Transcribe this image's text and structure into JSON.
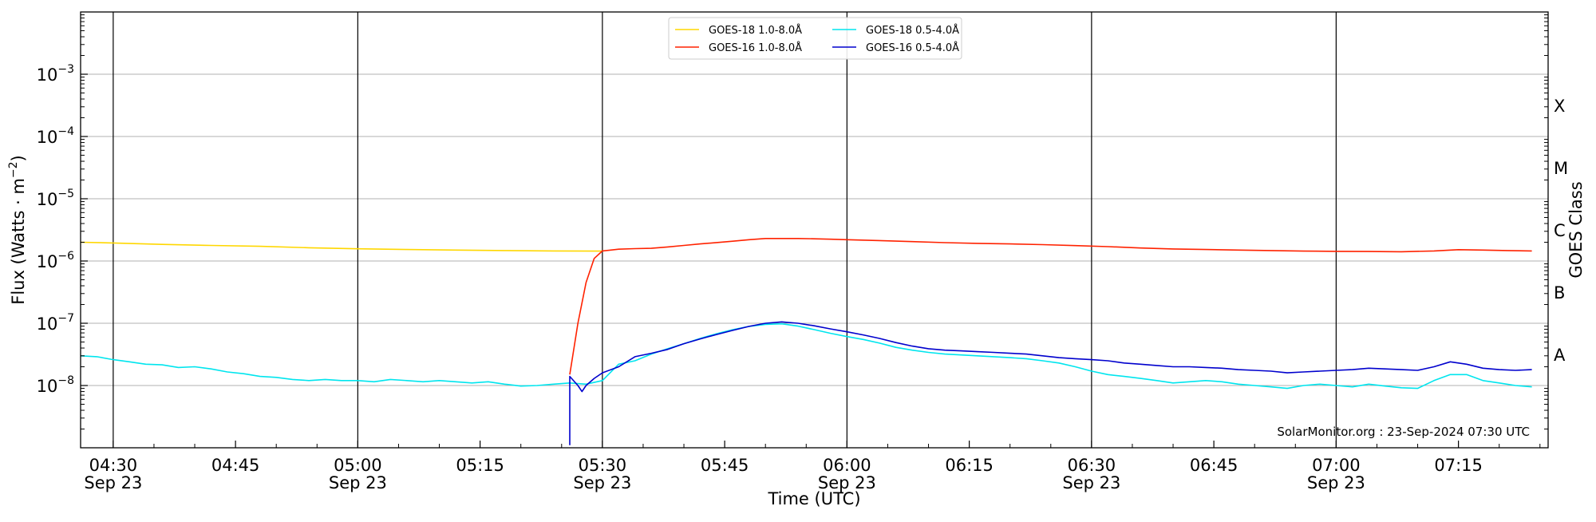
{
  "chart_data": {
    "type": "line",
    "xlabel": "Time (UTC)",
    "ylabel_main": "Flux (Watts · m",
    "ylabel_sup": "−2",
    "ylabel_close": ")",
    "y2label": "GOES Class",
    "y_scale": "log",
    "ylim": [
      1e-09,
      0.01
    ],
    "xlim_minutes": [
      266,
      446
    ],
    "grid": "horizontal at each decade; vertical lines at 30-minute marks",
    "legend_position": "top-center",
    "annotation": "SolarMonitor.org : 23-Sep-2024 07:30 UTC",
    "x_ticks": [
      {
        "m": 270,
        "time": "04:30",
        "date": "Sep 23"
      },
      {
        "m": 285,
        "time": "04:45",
        "date": ""
      },
      {
        "m": 300,
        "time": "05:00",
        "date": "Sep 23"
      },
      {
        "m": 315,
        "time": "05:15",
        "date": ""
      },
      {
        "m": 330,
        "time": "05:30",
        "date": "Sep 23"
      },
      {
        "m": 345,
        "time": "05:45",
        "date": ""
      },
      {
        "m": 360,
        "time": "06:00",
        "date": "Sep 23"
      },
      {
        "m": 375,
        "time": "06:15",
        "date": ""
      },
      {
        "m": 390,
        "time": "06:30",
        "date": "Sep 23"
      },
      {
        "m": 405,
        "time": "06:45",
        "date": ""
      },
      {
        "m": 420,
        "time": "07:00",
        "date": "Sep 23"
      },
      {
        "m": 435,
        "time": "07:15",
        "date": ""
      }
    ],
    "y_ticks": [
      {
        "exp": -8,
        "base": "10",
        "sup": "−8"
      },
      {
        "exp": -7,
        "base": "10",
        "sup": "−7"
      },
      {
        "exp": -6,
        "base": "10",
        "sup": "−6"
      },
      {
        "exp": -5,
        "base": "10",
        "sup": "−5"
      },
      {
        "exp": -4,
        "base": "10",
        "sup": "−4"
      },
      {
        "exp": -3,
        "base": "10",
        "sup": "−3"
      }
    ],
    "goes_classes": [
      {
        "label": "A",
        "exp": -7.5
      },
      {
        "label": "B",
        "exp": -6.5
      },
      {
        "label": "C",
        "exp": -5.5
      },
      {
        "label": "M",
        "exp": -4.5
      },
      {
        "label": "X",
        "exp": -3.5
      }
    ],
    "series": [
      {
        "name": "GOES-18 1.0-8.0Å",
        "color": "#ffd700",
        "points": [
          [
            266,
            2e-06
          ],
          [
            270,
            1.95e-06
          ],
          [
            276,
            1.85e-06
          ],
          [
            282,
            1.78e-06
          ],
          [
            288,
            1.72e-06
          ],
          [
            294,
            1.63e-06
          ],
          [
            300,
            1.57e-06
          ],
          [
            306,
            1.53e-06
          ],
          [
            312,
            1.5e-06
          ],
          [
            318,
            1.47e-06
          ],
          [
            324,
            1.45e-06
          ],
          [
            329,
            1.44e-06
          ],
          [
            330,
            1.44e-06
          ]
        ]
      },
      {
        "name": "GOES-16 1.0-8.0Å",
        "color": "#ff2200",
        "points": [
          [
            326,
            1.5e-08
          ],
          [
            327,
            1e-07
          ],
          [
            328,
            4.5e-07
          ],
          [
            329,
            1.1e-06
          ],
          [
            330,
            1.45e-06
          ],
          [
            332,
            1.55e-06
          ],
          [
            334,
            1.58e-06
          ],
          [
            336,
            1.6e-06
          ],
          [
            338,
            1.68e-06
          ],
          [
            340,
            1.78e-06
          ],
          [
            342,
            1.88e-06
          ],
          [
            344,
            1.98e-06
          ],
          [
            346,
            2.08e-06
          ],
          [
            348,
            2.2e-06
          ],
          [
            350,
            2.3e-06
          ],
          [
            352,
            2.3e-06
          ],
          [
            354,
            2.3e-06
          ],
          [
            356,
            2.27e-06
          ],
          [
            358,
            2.24e-06
          ],
          [
            360,
            2.2e-06
          ],
          [
            364,
            2.13e-06
          ],
          [
            368,
            2.05e-06
          ],
          [
            372,
            1.97e-06
          ],
          [
            376,
            1.92e-06
          ],
          [
            380,
            1.88e-06
          ],
          [
            384,
            1.83e-06
          ],
          [
            388,
            1.77e-06
          ],
          [
            392,
            1.7e-06
          ],
          [
            396,
            1.62e-06
          ],
          [
            400,
            1.56e-06
          ],
          [
            404,
            1.53e-06
          ],
          [
            408,
            1.5e-06
          ],
          [
            412,
            1.47e-06
          ],
          [
            416,
            1.44e-06
          ],
          [
            420,
            1.43e-06
          ],
          [
            424,
            1.42e-06
          ],
          [
            428,
            1.41e-06
          ],
          [
            432,
            1.45e-06
          ],
          [
            435,
            1.52e-06
          ],
          [
            438,
            1.5e-06
          ],
          [
            441,
            1.47e-06
          ],
          [
            444,
            1.45e-06
          ]
        ]
      },
      {
        "name": "GOES-18 0.5-4.0Å",
        "color": "#00e5ee",
        "points": [
          [
            266,
            3e-08
          ],
          [
            268,
            2.9e-08
          ],
          [
            270,
            2.6e-08
          ],
          [
            272,
            2.4e-08
          ],
          [
            274,
            2.2e-08
          ],
          [
            276,
            2.15e-08
          ],
          [
            278,
            1.95e-08
          ],
          [
            280,
            2e-08
          ],
          [
            282,
            1.85e-08
          ],
          [
            284,
            1.65e-08
          ],
          [
            286,
            1.55e-08
          ],
          [
            288,
            1.4e-08
          ],
          [
            290,
            1.35e-08
          ],
          [
            292,
            1.25e-08
          ],
          [
            294,
            1.2e-08
          ],
          [
            296,
            1.25e-08
          ],
          [
            298,
            1.2e-08
          ],
          [
            300,
            1.2e-08
          ],
          [
            302,
            1.15e-08
          ],
          [
            304,
            1.25e-08
          ],
          [
            306,
            1.2e-08
          ],
          [
            308,
            1.15e-08
          ],
          [
            310,
            1.2e-08
          ],
          [
            312,
            1.15e-08
          ],
          [
            314,
            1.1e-08
          ],
          [
            316,
            1.15e-08
          ],
          [
            318,
            1.05e-08
          ],
          [
            320,
            9.8e-09
          ],
          [
            322,
            1e-08
          ],
          [
            324,
            1.05e-08
          ],
          [
            326,
            1.1e-08
          ],
          [
            328,
            1.05e-08
          ],
          [
            330,
            1.2e-08
          ],
          [
            332,
            2.2e-08
          ],
          [
            334,
            2.5e-08
          ],
          [
            336,
            3.2e-08
          ],
          [
            338,
            3.9e-08
          ],
          [
            340,
            4.7e-08
          ],
          [
            342,
            5.7e-08
          ],
          [
            344,
            6.8e-08
          ],
          [
            346,
            7.9e-08
          ],
          [
            348,
            8.9e-08
          ],
          [
            350,
            9.6e-08
          ],
          [
            352,
            9.8e-08
          ],
          [
            354,
            9e-08
          ],
          [
            356,
            7.9e-08
          ],
          [
            358,
            6.9e-08
          ],
          [
            360,
            6.1e-08
          ],
          [
            362,
            5.5e-08
          ],
          [
            364,
            4.8e-08
          ],
          [
            366,
            4.1e-08
          ],
          [
            368,
            3.7e-08
          ],
          [
            370,
            3.4e-08
          ],
          [
            372,
            3.2e-08
          ],
          [
            374,
            3.1e-08
          ],
          [
            376,
            3e-08
          ],
          [
            378,
            2.9e-08
          ],
          [
            380,
            2.8e-08
          ],
          [
            382,
            2.7e-08
          ],
          [
            384,
            2.5e-08
          ],
          [
            386,
            2.3e-08
          ],
          [
            388,
            2e-08
          ],
          [
            390,
            1.7e-08
          ],
          [
            392,
            1.5e-08
          ],
          [
            394,
            1.4e-08
          ],
          [
            396,
            1.3e-08
          ],
          [
            398,
            1.2e-08
          ],
          [
            400,
            1.1e-08
          ],
          [
            402,
            1.15e-08
          ],
          [
            404,
            1.2e-08
          ],
          [
            406,
            1.15e-08
          ],
          [
            408,
            1.05e-08
          ],
          [
            410,
            1e-08
          ],
          [
            412,
            9.5e-09
          ],
          [
            414,
            9e-09
          ],
          [
            416,
            1e-08
          ],
          [
            418,
            1.05e-08
          ],
          [
            420,
            1e-08
          ],
          [
            422,
            9.5e-09
          ],
          [
            424,
            1.05e-08
          ],
          [
            426,
            9.8e-09
          ],
          [
            428,
            9.2e-09
          ],
          [
            430,
            9e-09
          ],
          [
            432,
            1.2e-08
          ],
          [
            434,
            1.5e-08
          ],
          [
            436,
            1.5e-08
          ],
          [
            438,
            1.2e-08
          ],
          [
            440,
            1.1e-08
          ],
          [
            442,
            1e-08
          ],
          [
            444,
            9.5e-09
          ]
        ]
      },
      {
        "name": "GOES-16 0.5-4.0Å",
        "color": "#0000cd",
        "points": [
          [
            326,
            1.1e-09
          ],
          [
            326,
            1.4e-08
          ],
          [
            327,
            1e-08
          ],
          [
            327.5,
            8e-09
          ],
          [
            328,
            1e-08
          ],
          [
            329,
            1.3e-08
          ],
          [
            330,
            1.6e-08
          ],
          [
            332,
            2e-08
          ],
          [
            334,
            2.9e-08
          ],
          [
            336,
            3.3e-08
          ],
          [
            338,
            3.8e-08
          ],
          [
            340,
            4.7e-08
          ],
          [
            342,
            5.6e-08
          ],
          [
            344,
            6.6e-08
          ],
          [
            346,
            7.7e-08
          ],
          [
            348,
            8.9e-08
          ],
          [
            350,
            1e-07
          ],
          [
            352,
            1.05e-07
          ],
          [
            354,
            1e-07
          ],
          [
            356,
            9.1e-08
          ],
          [
            358,
            8.1e-08
          ],
          [
            360,
            7.3e-08
          ],
          [
            362,
            6.5e-08
          ],
          [
            364,
            5.7e-08
          ],
          [
            366,
            4.9e-08
          ],
          [
            368,
            4.3e-08
          ],
          [
            370,
            3.9e-08
          ],
          [
            372,
            3.7e-08
          ],
          [
            374,
            3.6e-08
          ],
          [
            376,
            3.5e-08
          ],
          [
            378,
            3.4e-08
          ],
          [
            380,
            3.3e-08
          ],
          [
            382,
            3.2e-08
          ],
          [
            384,
            3e-08
          ],
          [
            386,
            2.8e-08
          ],
          [
            388,
            2.7e-08
          ],
          [
            390,
            2.6e-08
          ],
          [
            392,
            2.5e-08
          ],
          [
            394,
            2.3e-08
          ],
          [
            396,
            2.2e-08
          ],
          [
            398,
            2.1e-08
          ],
          [
            400,
            2e-08
          ],
          [
            402,
            2e-08
          ],
          [
            404,
            1.95e-08
          ],
          [
            406,
            1.9e-08
          ],
          [
            408,
            1.8e-08
          ],
          [
            410,
            1.75e-08
          ],
          [
            412,
            1.7e-08
          ],
          [
            414,
            1.6e-08
          ],
          [
            416,
            1.65e-08
          ],
          [
            418,
            1.7e-08
          ],
          [
            420,
            1.75e-08
          ],
          [
            422,
            1.8e-08
          ],
          [
            424,
            1.9e-08
          ],
          [
            426,
            1.85e-08
          ],
          [
            428,
            1.8e-08
          ],
          [
            430,
            1.75e-08
          ],
          [
            432,
            2e-08
          ],
          [
            434,
            2.4e-08
          ],
          [
            436,
            2.2e-08
          ],
          [
            438,
            1.9e-08
          ],
          [
            440,
            1.8e-08
          ],
          [
            442,
            1.75e-08
          ],
          [
            444,
            1.8e-08
          ]
        ]
      }
    ]
  }
}
